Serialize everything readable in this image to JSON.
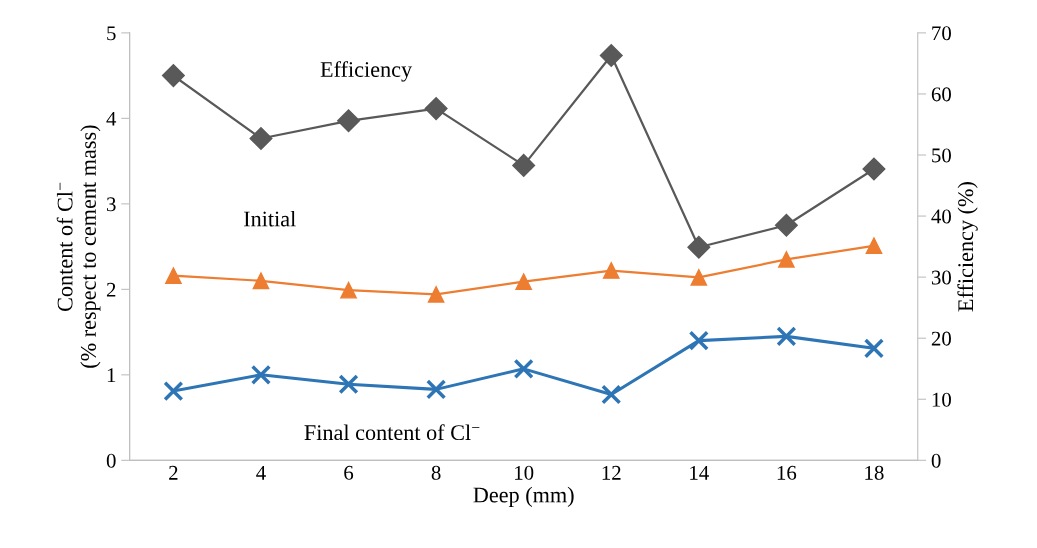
{
  "chart_data": {
    "type": "line",
    "xlabel": "Deep (mm)",
    "ylabel": "Content of Cl$^{−}$\n(% respect to cement mass)",
    "y2label": "Efficiency (%)",
    "categories": [
      "2",
      "4",
      "6",
      "8",
      "10",
      "12",
      "14",
      "16",
      "18"
    ],
    "series": [
      {
        "name": "Efficiency",
        "color": "#595959",
        "axis": "y2",
        "marker": "diamond",
        "values": [
          63.0,
          52.7,
          55.6,
          57.6,
          48.3,
          66.3,
          34.9,
          38.5,
          47.7
        ]
      },
      {
        "name": "Initial",
        "color": "#ed7d31",
        "marker": "triangle",
        "values": [
          2.16,
          2.1,
          1.99,
          1.94,
          2.09,
          2.22,
          2.14,
          2.35,
          2.51
        ]
      },
      {
        "name": "Final content of Cl$^{−}$",
        "color": "#2e75b6",
        "marker": "cross",
        "values": [
          0.81,
          1.0,
          0.89,
          0.83,
          1.07,
          0.77,
          1.4,
          1.45,
          1.31
        ]
      }
    ],
    "ylim": [
      0,
      5
    ],
    "yticks": [
      0,
      1,
      2,
      3,
      4,
      5
    ],
    "y2lim": [
      0,
      70
    ],
    "y2ticks": [
      0,
      10,
      20,
      30,
      40,
      50,
      60,
      70
    ],
    "grid": false,
    "legend": false
  }
}
